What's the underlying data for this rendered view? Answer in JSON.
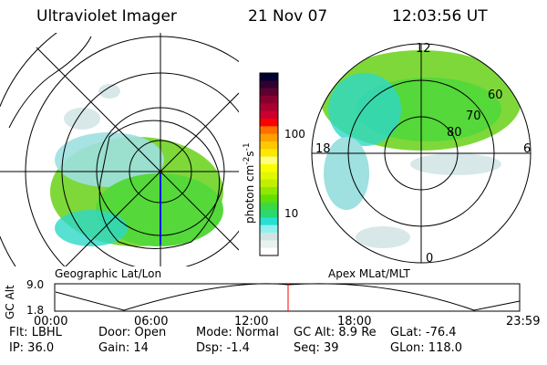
{
  "header": {
    "instrument": "Ultraviolet Imager",
    "date": "21 Nov 07",
    "time": "12:03:56 UT"
  },
  "left_map": {
    "label": "Geographic Lat/Lon"
  },
  "right_map": {
    "label": "Apex MLat/MLT",
    "mlt_labels": [
      "12",
      "18",
      "6",
      "0"
    ],
    "lat_labels": [
      "60",
      "70",
      "80"
    ]
  },
  "colorbar": {
    "unit": "photon cm",
    "unit_sup1": "-2",
    "unit_mid": "s",
    "unit_sup2": "-1",
    "ticks": [
      "100",
      "10"
    ],
    "scale": "log"
  },
  "altitude_plot": {
    "ylabel": "GC Alt",
    "y_ticks": [
      "9.0",
      "1.8"
    ],
    "x_ticks": [
      "00:00",
      "06:00",
      "12:00",
      "18:00",
      "23:59"
    ],
    "current_time_marker_color": "#ff0000"
  },
  "info": {
    "row1": [
      "Flt: LBHL",
      "Door: Open",
      "Mode: Normal",
      "GC Alt: 8.9 Re",
      "GLat: -76.4"
    ],
    "row2": [
      "IP: 36.0",
      "Gain: 14",
      "Dsp:    -1.4",
      "Seq: 39",
      "GLon: 118.0"
    ]
  }
}
